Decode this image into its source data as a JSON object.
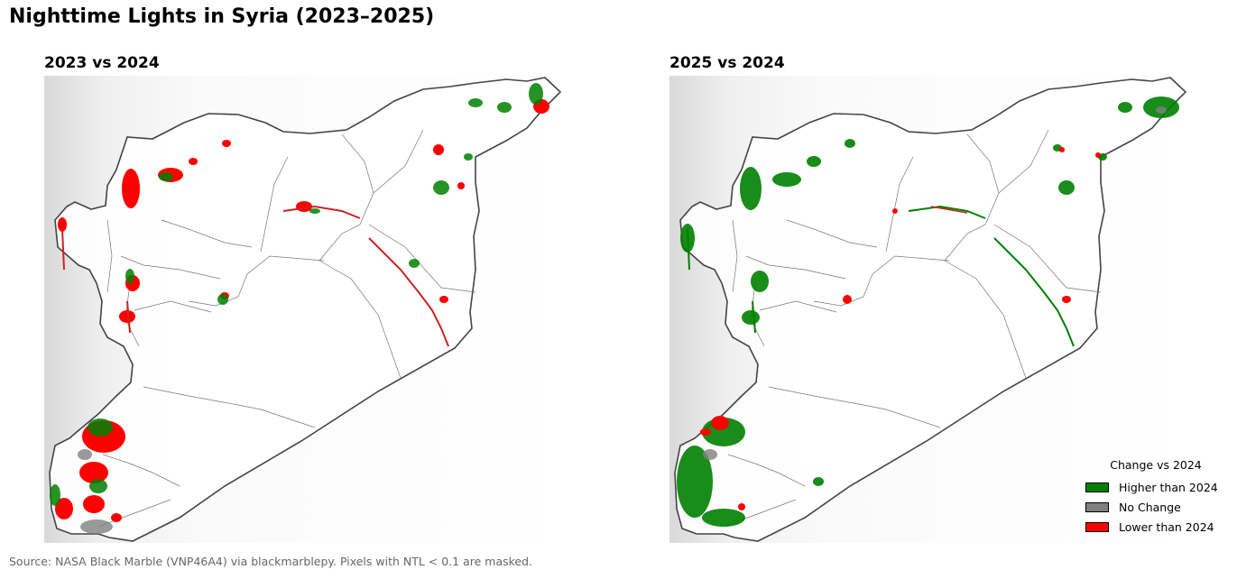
{
  "title": "Nighttime Lights in Syria (2023–2025)",
  "panels": [
    {
      "title": "2023 vs 2024"
    },
    {
      "title": "2025 vs 2024"
    }
  ],
  "legend": {
    "title": "Change vs 2024",
    "items": [
      {
        "label": "Higher than 2024",
        "color": "#008000"
      },
      {
        "label": "No Change",
        "color": "#808080"
      },
      {
        "label": "Lower than 2024",
        "color": "#ff0000"
      }
    ]
  },
  "source": "Source: NASA Black Marble (VNP46A4) via blackmarblepy. Pixels with NTL < 0.1 are masked."
}
